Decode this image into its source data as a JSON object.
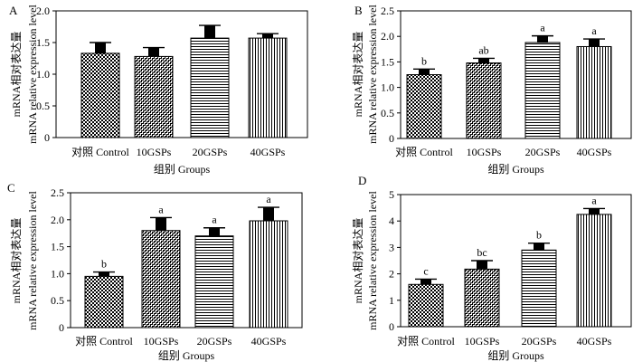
{
  "chart_data": [
    {
      "type": "bar",
      "panel": "A",
      "categories": [
        "对照 Control",
        "10GSPs",
        "20GSPs",
        "40GSPs"
      ],
      "values": [
        1.33,
        1.28,
        1.57,
        1.57
      ],
      "errors": [
        0.17,
        0.14,
        0.2,
        0.07
      ],
      "labels": [
        "",
        "",
        "",
        ""
      ],
      "xlabel": "组别 Groups",
      "ylabel_cn": "mRNA相对表达量",
      "ylabel_en": "mRNA relative expression level",
      "ylim": [
        0,
        2.0
      ],
      "yticks": [
        "0",
        "0.5",
        "1.0",
        "1.5",
        "2.0"
      ]
    },
    {
      "type": "bar",
      "panel": "B",
      "categories": [
        "对照 Control",
        "10GSPs",
        "20GSPs",
        "40GSPs"
      ],
      "values": [
        1.25,
        1.48,
        1.88,
        1.8
      ],
      "errors": [
        0.11,
        0.09,
        0.13,
        0.15
      ],
      "labels": [
        "b",
        "ab",
        "a",
        "a"
      ],
      "xlabel": "组别 Groups",
      "ylabel_cn": "mRNA相对表达量",
      "ylabel_en": "mRNA relative expression level",
      "ylim": [
        0,
        2.5
      ],
      "yticks": [
        "0",
        "0.5",
        "1.0",
        "1.5",
        "2.0",
        "2.5"
      ]
    },
    {
      "type": "bar",
      "panel": "C",
      "categories": [
        "对照 Control",
        "10GSPs",
        "20GSPs",
        "40GSPs"
      ],
      "values": [
        0.95,
        1.8,
        1.7,
        1.98
      ],
      "errors": [
        0.08,
        0.24,
        0.15,
        0.25
      ],
      "labels": [
        "b",
        "a",
        "a",
        "a"
      ],
      "xlabel": "组别 Groups",
      "ylabel_cn": "mRNA相对表达量",
      "ylabel_en": "mRNA relative expression level",
      "ylim": [
        0,
        2.5
      ],
      "yticks": [
        "0",
        "0.5",
        "1.0",
        "1.5",
        "2.0",
        "2.5"
      ]
    },
    {
      "type": "bar",
      "panel": "D",
      "categories": [
        "对照 Control",
        "10GSPs",
        "20GSPs",
        "40GSPs"
      ],
      "values": [
        1.6,
        2.18,
        2.9,
        4.25
      ],
      "errors": [
        0.2,
        0.32,
        0.26,
        0.22
      ],
      "labels": [
        "c",
        "bc",
        "b",
        "a"
      ],
      "xlabel": "组别 Groups",
      "ylabel_cn": "mRNA相对表达量",
      "ylabel_en": "mRNA relative expression level",
      "ylim": [
        0,
        5
      ],
      "yticks": [
        "0",
        "1",
        "2",
        "3",
        "4",
        "5"
      ]
    }
  ]
}
